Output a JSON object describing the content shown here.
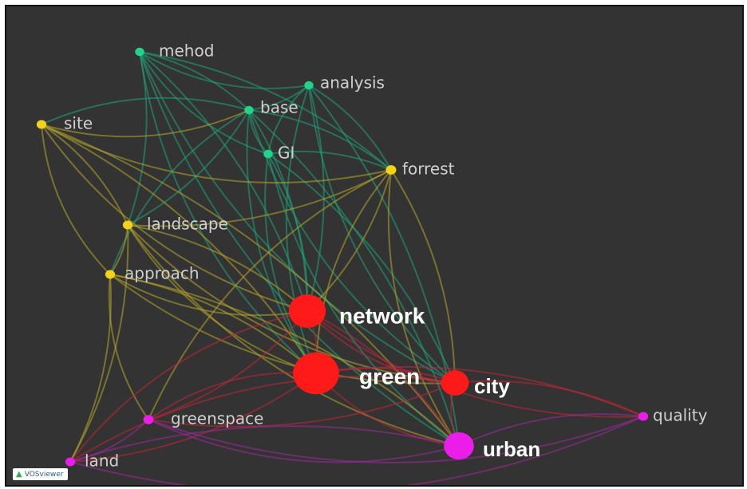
{
  "watermark": {
    "text": "VOSviewer"
  },
  "clusters": {
    "red": "#ff1a1a",
    "yellow": "#f2d21b",
    "green": "#22d38a",
    "magenta": "#ea1ee8"
  },
  "link_colors": {
    "red": "#c0263a",
    "yellow": "#b5a52c",
    "green": "#1fa37a",
    "magenta": "#9c2a9a"
  },
  "nodes": [
    {
      "id": "mehod",
      "label": "mehod",
      "cluster": "green",
      "weight": 1,
      "big": false
    },
    {
      "id": "analysis",
      "label": "analysis",
      "cluster": "green",
      "weight": 1,
      "big": false
    },
    {
      "id": "base",
      "label": "base",
      "cluster": "green",
      "weight": 1,
      "big": false
    },
    {
      "id": "GI",
      "label": "GI",
      "cluster": "green",
      "weight": 1,
      "big": false
    },
    {
      "id": "site",
      "label": "site",
      "cluster": "yellow",
      "weight": 1.3,
      "big": false
    },
    {
      "id": "forrest",
      "label": "forrest",
      "cluster": "yellow",
      "weight": 1.6,
      "big": false
    },
    {
      "id": "landscape",
      "label": "landscape",
      "cluster": "yellow",
      "weight": 1.3,
      "big": false
    },
    {
      "id": "approach",
      "label": "approach",
      "cluster": "yellow",
      "weight": 1.3,
      "big": false
    },
    {
      "id": "network",
      "label": "network",
      "cluster": "red",
      "weight": 5,
      "big": true
    },
    {
      "id": "green",
      "label": "green",
      "cluster": "red",
      "weight": 7,
      "big": true
    },
    {
      "id": "city",
      "label": "city",
      "cluster": "red",
      "weight": 3,
      "big": true
    },
    {
      "id": "greenspace",
      "label": "greenspace",
      "cluster": "magenta",
      "weight": 1.5,
      "big": false
    },
    {
      "id": "land",
      "label": "land",
      "cluster": "magenta",
      "weight": 1.3,
      "big": false
    },
    {
      "id": "quality",
      "label": "quality",
      "cluster": "magenta",
      "weight": 1.3,
      "big": false
    },
    {
      "id": "urban",
      "label": "urban",
      "cluster": "magenta",
      "weight": 3.5,
      "big": true
    }
  ],
  "links": [
    [
      "mehod",
      "analysis"
    ],
    [
      "mehod",
      "base"
    ],
    [
      "mehod",
      "GI"
    ],
    [
      "mehod",
      "network"
    ],
    [
      "mehod",
      "green"
    ],
    [
      "mehod",
      "forrest"
    ],
    [
      "mehod",
      "city"
    ],
    [
      "mehod",
      "landscape"
    ],
    [
      "mehod",
      "urban"
    ],
    [
      "analysis",
      "base"
    ],
    [
      "analysis",
      "GI"
    ],
    [
      "analysis",
      "network"
    ],
    [
      "analysis",
      "green"
    ],
    [
      "analysis",
      "forrest"
    ],
    [
      "analysis",
      "city"
    ],
    [
      "analysis",
      "urban"
    ],
    [
      "base",
      "GI"
    ],
    [
      "base",
      "network"
    ],
    [
      "base",
      "green"
    ],
    [
      "base",
      "forrest"
    ],
    [
      "base",
      "city"
    ],
    [
      "base",
      "urban"
    ],
    [
      "base",
      "approach"
    ],
    [
      "base",
      "landscape"
    ],
    [
      "base",
      "site"
    ],
    [
      "GI",
      "network"
    ],
    [
      "GI",
      "green"
    ],
    [
      "GI",
      "city"
    ],
    [
      "GI",
      "urban"
    ],
    [
      "GI",
      "forrest"
    ],
    [
      "site",
      "forrest"
    ],
    [
      "site",
      "landscape"
    ],
    [
      "site",
      "approach"
    ],
    [
      "site",
      "green"
    ],
    [
      "site",
      "network"
    ],
    [
      "site",
      "urban"
    ],
    [
      "site",
      "base"
    ],
    [
      "forrest",
      "network"
    ],
    [
      "forrest",
      "green"
    ],
    [
      "forrest",
      "city"
    ],
    [
      "forrest",
      "urban"
    ],
    [
      "forrest",
      "landscape"
    ],
    [
      "forrest",
      "greenspace"
    ],
    [
      "landscape",
      "approach"
    ],
    [
      "landscape",
      "green"
    ],
    [
      "landscape",
      "network"
    ],
    [
      "landscape",
      "urban"
    ],
    [
      "landscape",
      "land"
    ],
    [
      "landscape",
      "city"
    ],
    [
      "approach",
      "green"
    ],
    [
      "approach",
      "network"
    ],
    [
      "approach",
      "urban"
    ],
    [
      "approach",
      "greenspace"
    ],
    [
      "approach",
      "land"
    ],
    [
      "approach",
      "city"
    ],
    [
      "network",
      "green"
    ],
    [
      "network",
      "city"
    ],
    [
      "network",
      "urban"
    ],
    [
      "network",
      "quality"
    ],
    [
      "network",
      "greenspace"
    ],
    [
      "network",
      "land"
    ],
    [
      "green",
      "city"
    ],
    [
      "green",
      "urban"
    ],
    [
      "green",
      "quality"
    ],
    [
      "green",
      "greenspace"
    ],
    [
      "green",
      "land"
    ],
    [
      "city",
      "urban"
    ],
    [
      "city",
      "quality"
    ],
    [
      "city",
      "land"
    ],
    [
      "city",
      "greenspace"
    ],
    [
      "greenspace",
      "urban"
    ],
    [
      "greenspace",
      "land"
    ],
    [
      "greenspace",
      "quality"
    ],
    [
      "land",
      "urban"
    ],
    [
      "land",
      "quality"
    ],
    [
      "urban",
      "quality"
    ]
  ]
}
